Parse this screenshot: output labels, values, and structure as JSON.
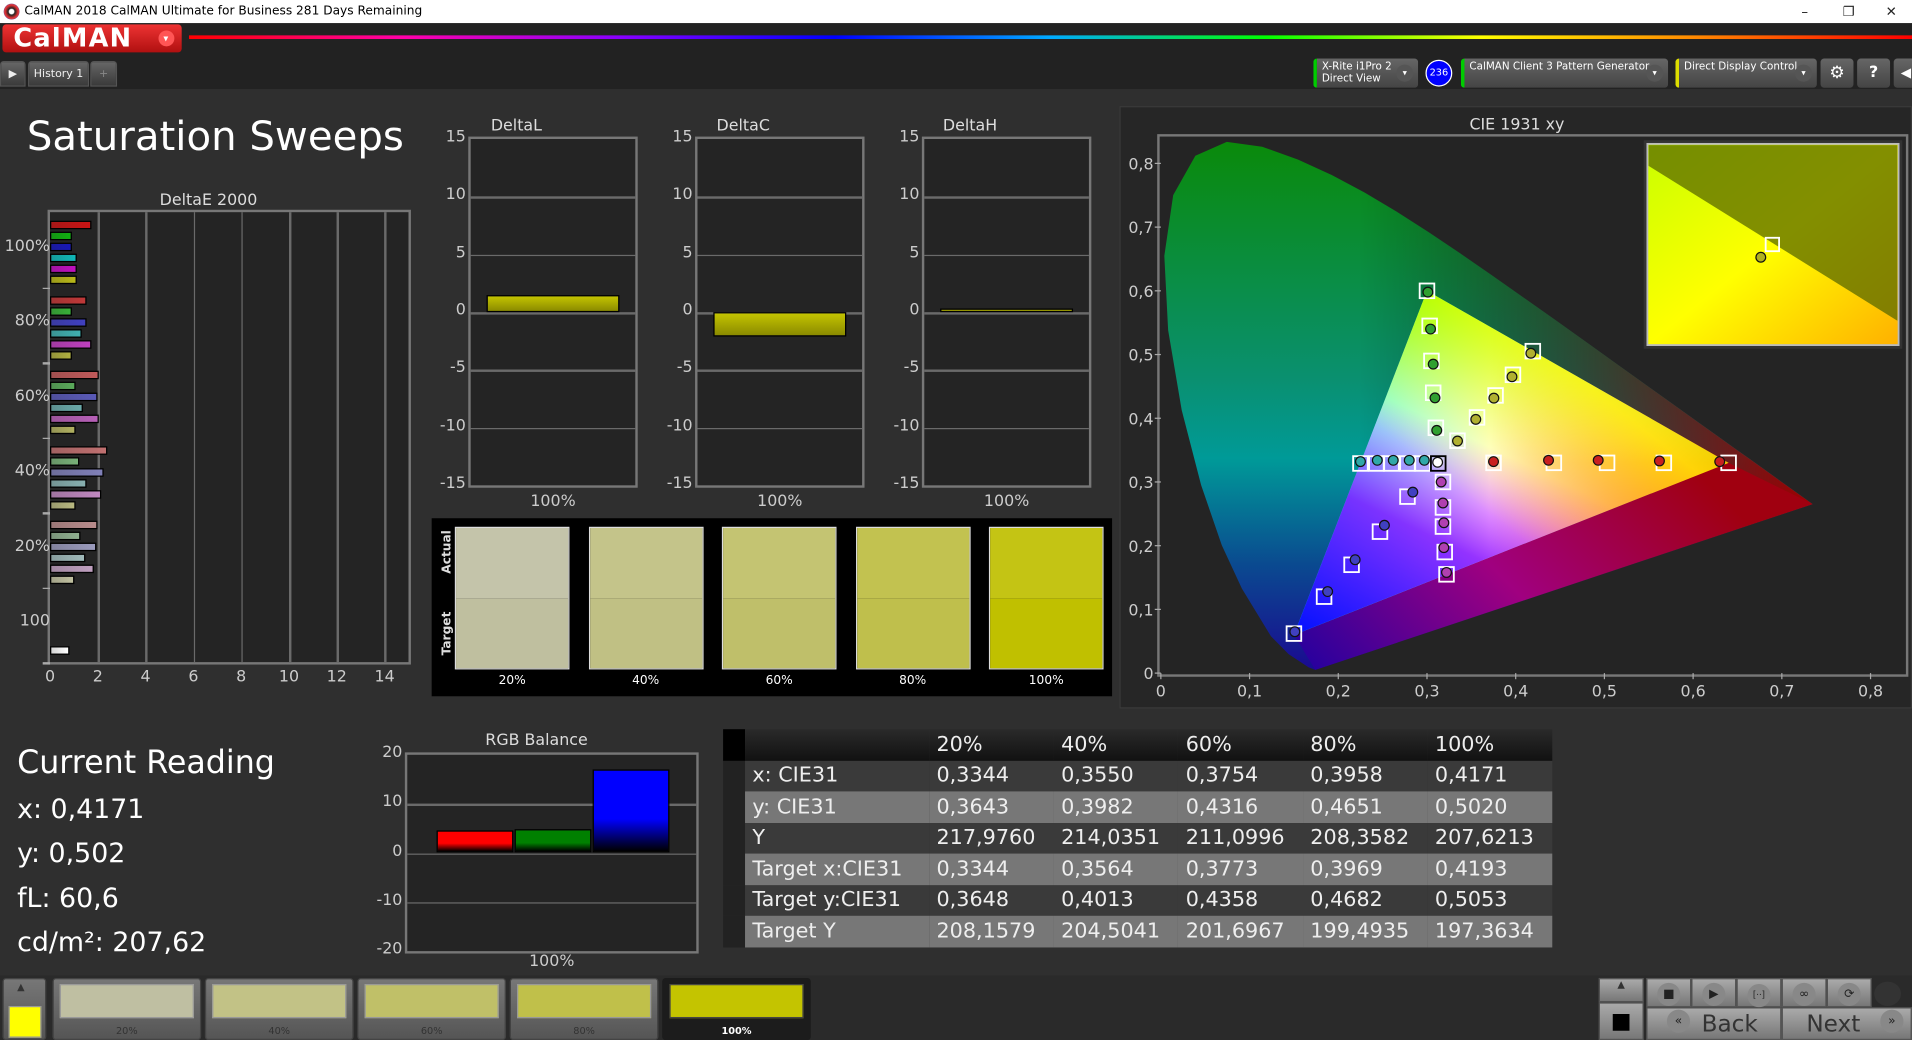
{
  "window": {
    "title": "CalMAN 2018 CalMAN Ultimate for Business 281 Days Remaining",
    "controls": [
      "–",
      "❐",
      "✕"
    ]
  },
  "app": {
    "logo": "CalMAN",
    "logo_dropdown": "▾"
  },
  "tabs": {
    "items": [
      {
        "label": "History 1"
      }
    ],
    "add": "+",
    "play": "▶"
  },
  "toolbar": {
    "meter": {
      "line1": "X-Rite i1Pro 2",
      "line2": "Direct View",
      "badge": "236",
      "accent": "#00cc00"
    },
    "source": {
      "label": "CalMAN Client 3 Pattern Generator",
      "accent": "#00cc00"
    },
    "display": {
      "label": "Direct Display Control",
      "accent": "#e0e000"
    },
    "settings": "⚙",
    "help": "?",
    "collapse": "◀",
    "dropdown": "▾"
  },
  "page": {
    "title": "Saturation Sweeps"
  },
  "deltae": {
    "title": "DeltaE 2000",
    "x_ticks": [
      "0",
      "2",
      "4",
      "6",
      "8",
      "10",
      "12",
      "14"
    ],
    "xlim": [
      0,
      15
    ],
    "groups": [
      {
        "label": "100%",
        "values": [
          1.75,
          0.9,
          0.9,
          1.1,
          1.1,
          1.1
        ]
      },
      {
        "label": "80%",
        "values": [
          1.55,
          0.9,
          1.55,
          1.35,
          1.75,
          0.9
        ]
      },
      {
        "label": "60%",
        "values": [
          2.05,
          1.05,
          2.0,
          1.4,
          2.05,
          1.05
        ]
      },
      {
        "label": "40%",
        "values": [
          2.4,
          1.2,
          2.25,
          1.55,
          2.15,
          1.05
        ]
      },
      {
        "label": "20%",
        "values": [
          2.0,
          1.3,
          1.95,
          1.5,
          1.85,
          1.0
        ]
      },
      {
        "label": "100",
        "values": [
          0.8
        ]
      }
    ],
    "colors": [
      [
        "#c81414",
        "#10b010",
        "#1818b8",
        "#10b8b8",
        "#c010c0",
        "#b8b818"
      ],
      [
        "#c03838",
        "#38b038",
        "#4040c0",
        "#40b0b0",
        "#c040c0",
        "#b0b040"
      ],
      [
        "#c05a5a",
        "#5aaa5a",
        "#5a5ab8",
        "#6aaaaa",
        "#b860b8",
        "#b0b060"
      ],
      [
        "#c07070",
        "#78b078",
        "#8080b8",
        "#88b0b0",
        "#c088c0",
        "#b8b880"
      ],
      [
        "#b88c8c",
        "#90b090",
        "#9a9abc",
        "#a0baba",
        "#c0a0c0",
        "#c0c0a0"
      ],
      [
        "#ffffff"
      ]
    ]
  },
  "delta_charts": [
    {
      "title": "DeltaL",
      "category": "100%",
      "value": 1.5
    },
    {
      "title": "DeltaC",
      "category": "100%",
      "value": -2.1
    },
    {
      "title": "DeltaH",
      "category": "100%",
      "value": 0.35
    }
  ],
  "delta_axis": {
    "ticks": [
      "15",
      "10",
      "5",
      "0",
      "-5",
      "-10",
      "-15"
    ],
    "ylim": [
      -15,
      15
    ],
    "bar_color": "#c4c400"
  },
  "swatches": {
    "actual_label": "Actual",
    "target_label": "Target",
    "items": [
      {
        "label": "20%",
        "actual": "#c4c4aa",
        "target": "#bfbf9f"
      },
      {
        "label": "40%",
        "actual": "#c4c48a",
        "target": "#c0c084"
      },
      {
        "label": "60%",
        "actual": "#c4c472",
        "target": "#bfbf6a"
      },
      {
        "label": "80%",
        "actual": "#c2c250",
        "target": "#bfbf4c"
      },
      {
        "label": "100%",
        "actual": "#c4c414",
        "target": "#c0c000"
      }
    ]
  },
  "cie": {
    "title": "CIE 1931 xy",
    "x_ticks": [
      "0",
      "0,1",
      "0,2",
      "0,3",
      "0,4",
      "0,5",
      "0,6",
      "0,7",
      "0,8"
    ],
    "y_ticks": [
      "0",
      "0,1",
      "0,2",
      "0,3",
      "0,4",
      "0,5",
      "0,6",
      "0,7",
      "0,8"
    ],
    "xlim": [
      0,
      0.84
    ],
    "ylim": [
      0,
      0.84
    ],
    "gamut": [
      [
        0.64,
        0.33
      ],
      [
        0.3,
        0.6
      ],
      [
        0.15,
        0.06
      ]
    ],
    "white": {
      "target": [
        0.3127,
        0.329
      ],
      "measured": [
        0.312,
        0.331
      ]
    },
    "series": [
      {
        "color": "#c82020",
        "targets": [
          [
            0.375,
            0.33
          ],
          [
            0.443,
            0.33
          ],
          [
            0.503,
            0.33
          ],
          [
            0.567,
            0.33
          ],
          [
            0.64,
            0.33
          ]
        ],
        "measured": [
          [
            0.375,
            0.332
          ],
          [
            0.437,
            0.334
          ],
          [
            0.493,
            0.334
          ],
          [
            0.562,
            0.333
          ],
          [
            0.63,
            0.332
          ]
        ]
      },
      {
        "color": "#30a030",
        "targets": [
          [
            0.31,
            0.385
          ],
          [
            0.307,
            0.44
          ],
          [
            0.305,
            0.49
          ],
          [
            0.303,
            0.545
          ],
          [
            0.3,
            0.6
          ]
        ],
        "measured": [
          [
            0.311,
            0.381
          ],
          [
            0.309,
            0.432
          ],
          [
            0.307,
            0.485
          ],
          [
            0.304,
            0.54
          ],
          [
            0.301,
            0.598
          ]
        ]
      },
      {
        "color": "#4040c0",
        "targets": [
          [
            0.278,
            0.277
          ],
          [
            0.247,
            0.222
          ],
          [
            0.215,
            0.17
          ],
          [
            0.184,
            0.12
          ],
          [
            0.15,
            0.062
          ]
        ],
        "measured": [
          [
            0.284,
            0.284
          ],
          [
            0.252,
            0.232
          ],
          [
            0.219,
            0.178
          ],
          [
            0.188,
            0.128
          ],
          [
            0.151,
            0.065
          ]
        ]
      },
      {
        "color": "#30a8a8",
        "targets": [
          [
            0.295,
            0.329
          ],
          [
            0.278,
            0.329
          ],
          [
            0.26,
            0.329
          ],
          [
            0.243,
            0.329
          ],
          [
            0.225,
            0.329
          ]
        ],
        "measured": [
          [
            0.297,
            0.334
          ],
          [
            0.28,
            0.334
          ],
          [
            0.262,
            0.334
          ],
          [
            0.244,
            0.334
          ],
          [
            0.225,
            0.332
          ]
        ]
      },
      {
        "color": "#b040b0",
        "targets": [
          [
            0.318,
            0.3
          ],
          [
            0.318,
            0.26
          ],
          [
            0.318,
            0.23
          ],
          [
            0.32,
            0.19
          ],
          [
            0.322,
            0.155
          ]
        ],
        "measured": [
          [
            0.316,
            0.3
          ],
          [
            0.318,
            0.267
          ],
          [
            0.319,
            0.236
          ],
          [
            0.319,
            0.197
          ],
          [
            0.322,
            0.158
          ]
        ]
      },
      {
        "color": "#b0b030",
        "targets": [
          [
            0.3344,
            0.3648
          ],
          [
            0.3564,
            0.4013
          ],
          [
            0.3773,
            0.4358
          ],
          [
            0.3969,
            0.4682
          ],
          [
            0.4193,
            0.5053
          ]
        ],
        "measured": [
          [
            0.3344,
            0.3643
          ],
          [
            0.355,
            0.3982
          ],
          [
            0.3754,
            0.4316
          ],
          [
            0.3958,
            0.4651
          ],
          [
            0.4171,
            0.502
          ]
        ]
      }
    ]
  },
  "current_reading": {
    "title": "Current Reading",
    "x": "x: 0,4171",
    "y": "y: 0,502",
    "fl": "fL: 60,6",
    "cdm2": "cd/m²: 207,62"
  },
  "rgb_balance": {
    "title": "RGB Balance",
    "category": "100%",
    "ticks": [
      "20",
      "10",
      "0",
      "-10",
      "-20"
    ],
    "ylim": [
      -20,
      20
    ],
    "bars": [
      {
        "value": 4.5,
        "color": "#ff0000"
      },
      {
        "value": 4.8,
        "color": "#008000"
      },
      {
        "value": 17,
        "color": "#0000ff"
      }
    ]
  },
  "table": {
    "headers": [
      "",
      "20%",
      "40%",
      "60%",
      "80%",
      "100%"
    ],
    "rows": [
      [
        "x: CIE31",
        "0,3344",
        "0,3550",
        "0,3754",
        "0,3958",
        "0,4171"
      ],
      [
        "y: CIE31",
        "0,3643",
        "0,3982",
        "0,4316",
        "0,4651",
        "0,5020"
      ],
      [
        "Y",
        "217,9760",
        "214,0351",
        "211,0996",
        "208,3582",
        "207,6213"
      ],
      [
        "Target x:CIE31",
        "0,3344",
        "0,3564",
        "0,3773",
        "0,3969",
        "0,4193"
      ],
      [
        "Target y:CIE31",
        "0,3648",
        "0,4013",
        "0,4358",
        "0,4682",
        "0,5053"
      ],
      [
        "Target Y",
        "208,1579",
        "204,5041",
        "201,6967",
        "199,4935",
        "197,3634"
      ]
    ]
  },
  "bottom": {
    "current_color": "#ffff00",
    "up": "▲",
    "patches": [
      {
        "label": "20%",
        "color": "#bfbfa2"
      },
      {
        "label": "40%",
        "color": "#c2c286"
      },
      {
        "label": "60%",
        "color": "#c0c068"
      },
      {
        "label": "80%",
        "color": "#c0c04a"
      },
      {
        "label": "100%",
        "color": "#c4c400",
        "active": true
      }
    ],
    "controls": {
      "stop": "■",
      "play": "▶",
      "bracket": "[··]",
      "loop": "∞",
      "refresh": "⟳",
      "back": "Back",
      "next": "Next",
      "back_icon": "«",
      "next_icon": "»",
      "big_stop": "■"
    }
  }
}
